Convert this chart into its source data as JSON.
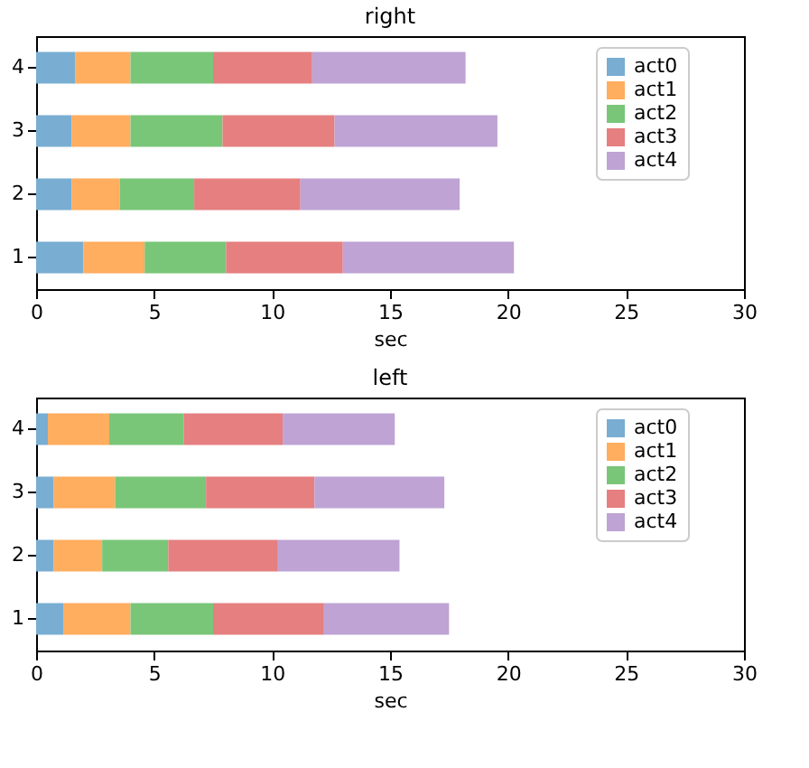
{
  "chart_data": [
    {
      "type": "bar",
      "orientation": "horizontal",
      "stacked": true,
      "title": "right",
      "xlabel": "sec",
      "categories": [
        "4",
        "3",
        "2",
        "1"
      ],
      "xlim": [
        0,
        30
      ],
      "xticks": [
        0,
        5,
        10,
        15,
        20,
        25,
        30
      ],
      "legend": "top right",
      "series": [
        {
          "name": "act0",
          "color": "#79add2",
          "values": [
            1.65,
            1.5,
            1.5,
            2.0
          ]
        },
        {
          "name": "act1",
          "color": "#ffad5f",
          "values": [
            2.35,
            2.5,
            2.05,
            2.6
          ]
        },
        {
          "name": "act2",
          "color": "#79c679",
          "values": [
            3.5,
            3.9,
            3.15,
            3.45
          ]
        },
        {
          "name": "act3",
          "color": "#e57f80",
          "values": [
            4.2,
            4.75,
            4.5,
            4.95
          ]
        },
        {
          "name": "act4",
          "color": "#bea3d4",
          "values": [
            6.5,
            6.9,
            6.75,
            7.25
          ]
        }
      ]
    },
    {
      "type": "bar",
      "orientation": "horizontal",
      "stacked": true,
      "title": "left",
      "xlabel": "sec",
      "categories": [
        "4",
        "3",
        "2",
        "1"
      ],
      "xlim": [
        0,
        30
      ],
      "xticks": [
        0,
        5,
        10,
        15,
        20,
        25,
        30
      ],
      "legend": "top right",
      "series": [
        {
          "name": "act0",
          "color": "#79add2",
          "values": [
            0.5,
            0.75,
            0.75,
            1.15
          ]
        },
        {
          "name": "act1",
          "color": "#ffad5f",
          "values": [
            2.6,
            2.6,
            2.05,
            2.85
          ]
        },
        {
          "name": "act2",
          "color": "#79c679",
          "values": [
            3.15,
            3.85,
            2.8,
            3.5
          ]
        },
        {
          "name": "act3",
          "color": "#e57f80",
          "values": [
            4.2,
            4.6,
            4.65,
            4.7
          ]
        },
        {
          "name": "act4",
          "color": "#bea3d4",
          "values": [
            4.75,
            5.5,
            5.15,
            5.3
          ]
        }
      ]
    }
  ]
}
